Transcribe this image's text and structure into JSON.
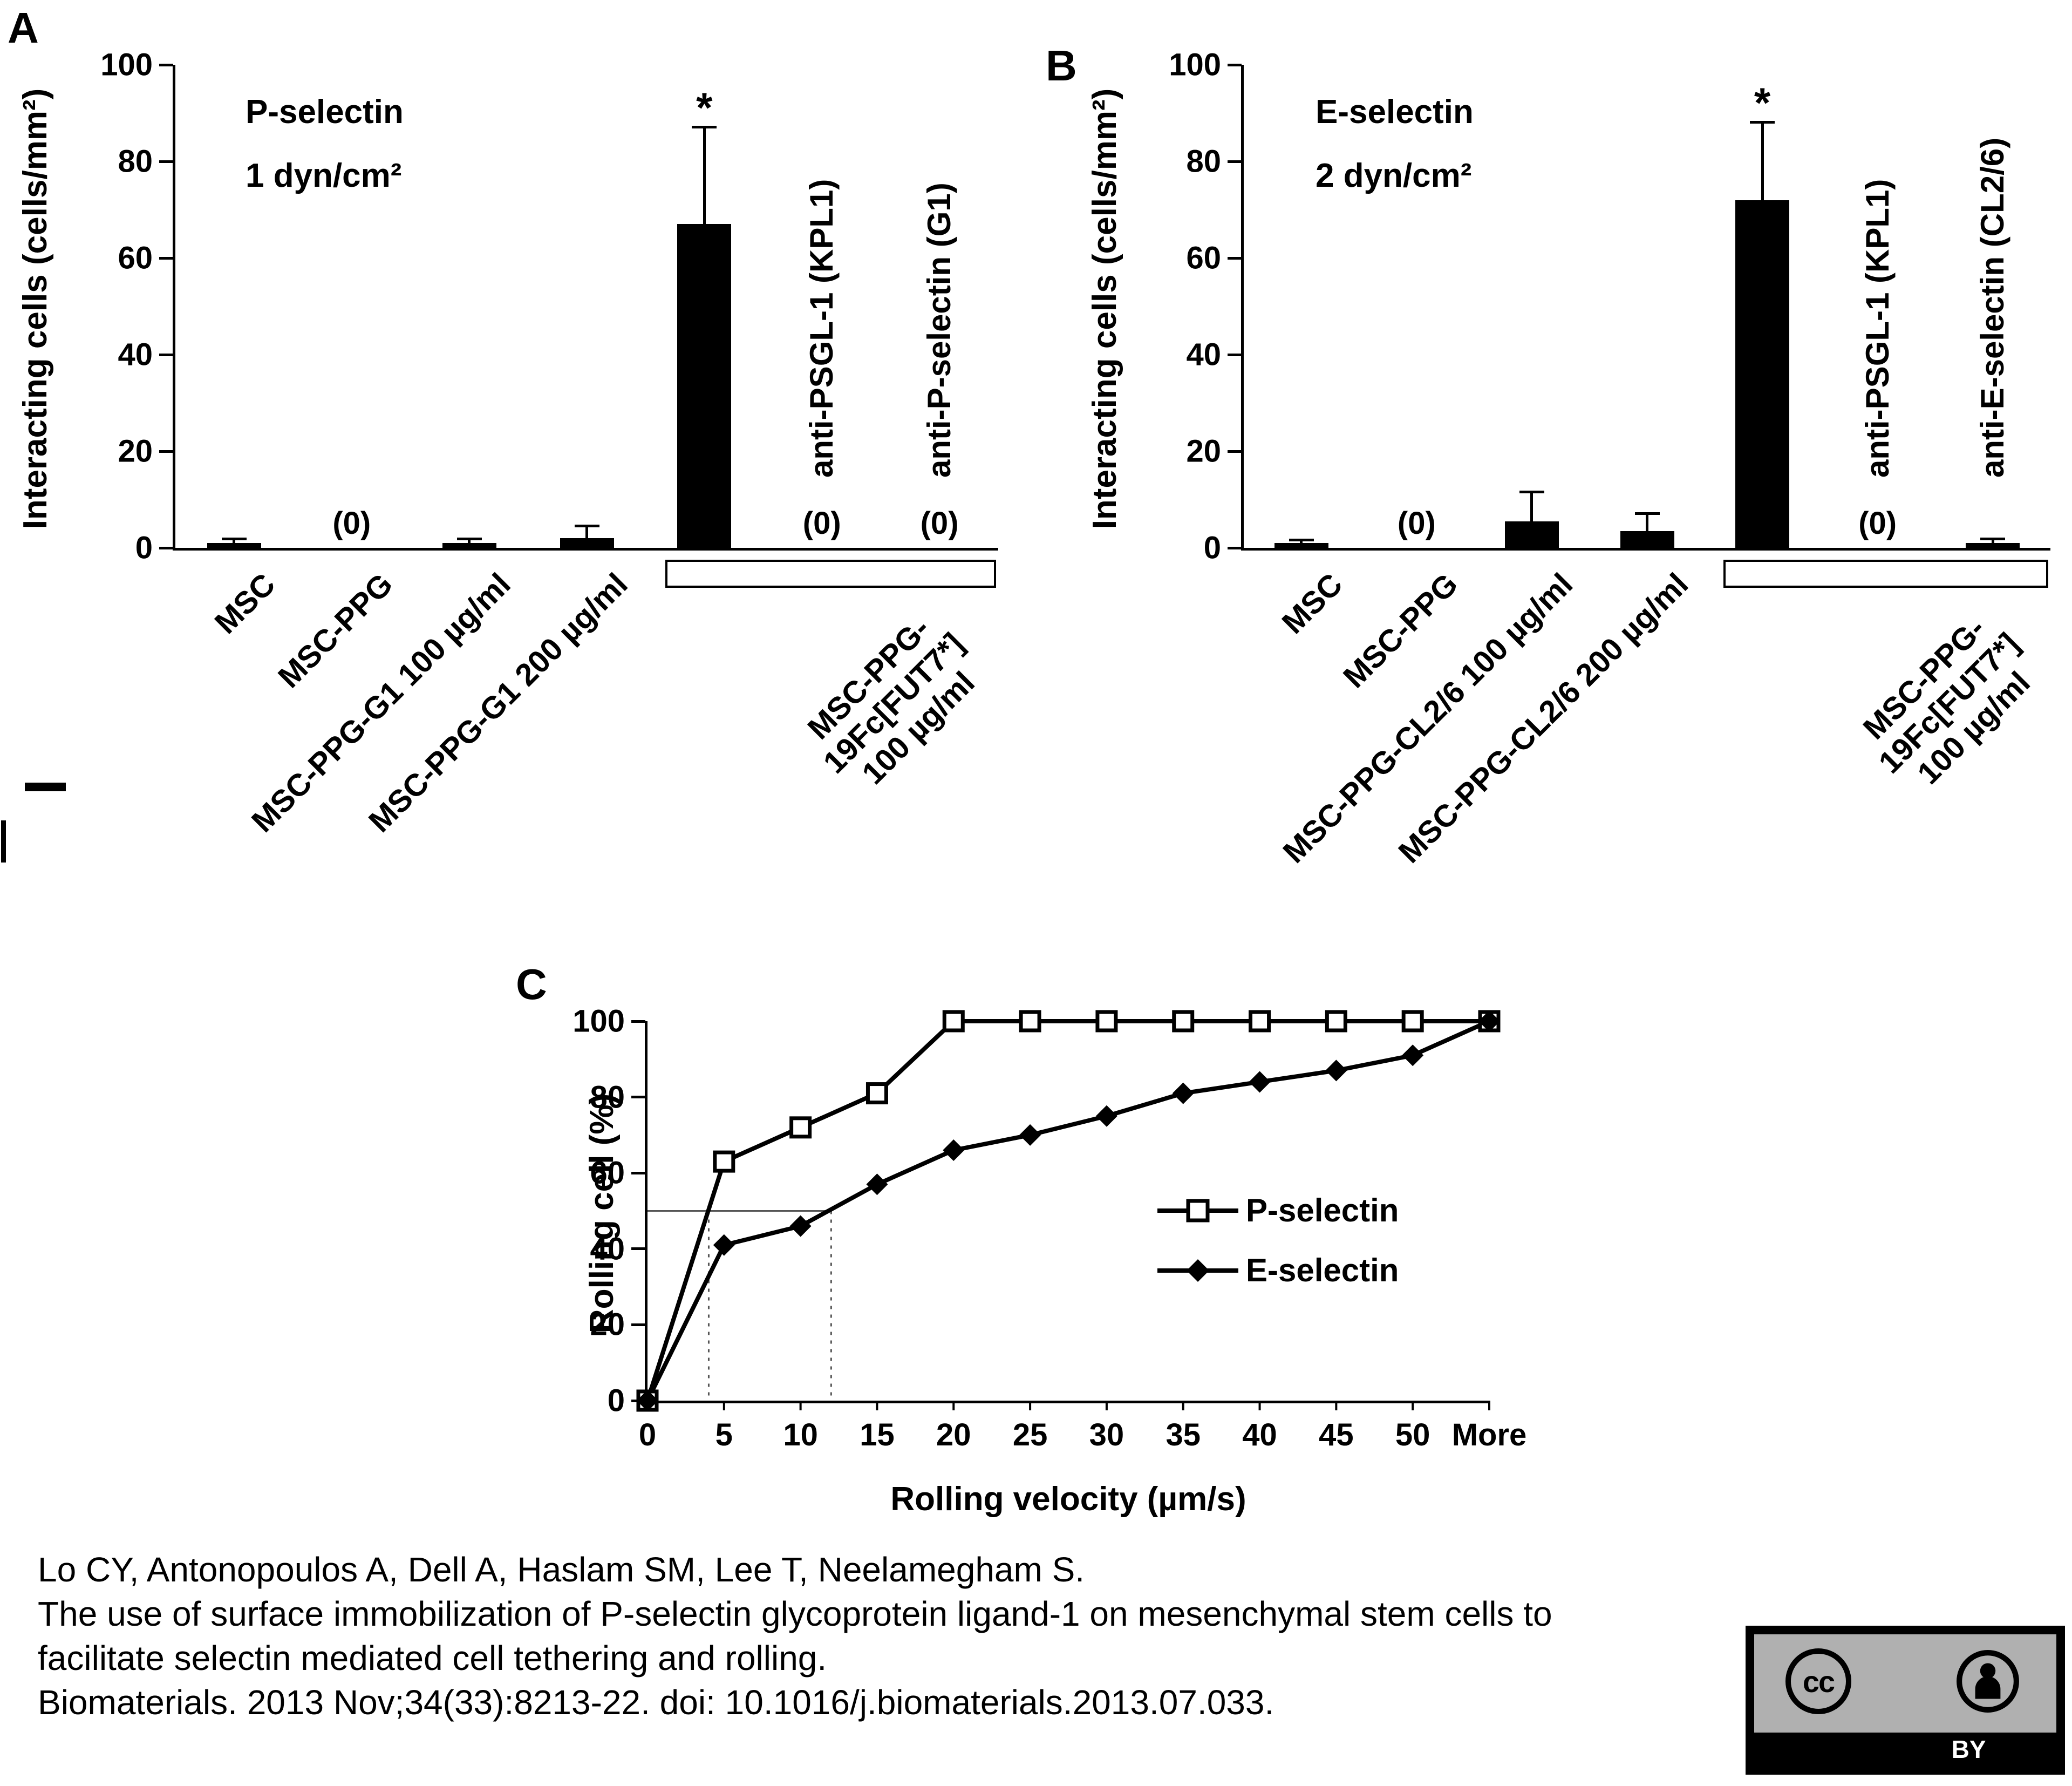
{
  "figure": {
    "background": "#ffffff",
    "text_color": "#000000"
  },
  "chart_data": [
    {
      "id": "panel-a",
      "panel_label": "A",
      "type": "bar",
      "title": "P-selectin",
      "subtitle": "1 dyn/cm²",
      "ylabel": "Interacting cells (cells/mm²)",
      "ylim": [
        0,
        100
      ],
      "yticks": [
        0,
        20,
        40,
        60,
        80,
        100
      ],
      "bar_color": "#000000",
      "x_tick_labels": [
        "MSC",
        "MSC-PPG",
        "MSC-PPG-G1 100 µg/ml",
        "MSC-PPG-G1 200 µg/ml"
      ],
      "values": [
        1,
        0,
        1,
        2,
        67,
        0,
        0
      ],
      "errors_plus": [
        0.8,
        0,
        0.8,
        2.5,
        20,
        0,
        0
      ],
      "zero_annotation_text": "(0)",
      "zero_annotation_slots": [
        1,
        5,
        6
      ],
      "significance": {
        "slot": 4,
        "symbol": "*"
      },
      "inplot_labels": [
        {
          "slot": 5,
          "text": "anti-PSGL-1 (KPL1)"
        },
        {
          "slot": 6,
          "text": "anti-P-selectin (G1)"
        }
      ],
      "bracket": {
        "from_slot": 4,
        "to_slot": 6,
        "label_lines": [
          "MSC-PPG-",
          "19Fc[FUT7*]",
          "100 µg/ml"
        ]
      }
    },
    {
      "id": "panel-b",
      "panel_label": "B",
      "type": "bar",
      "title": "E-selectin",
      "subtitle": "2 dyn/cm²",
      "ylabel": "Interacting cells (cells/mm²)",
      "ylim": [
        0,
        100
      ],
      "yticks": [
        0,
        20,
        40,
        60,
        80,
        100
      ],
      "bar_color": "#000000",
      "x_tick_labels": [
        "MSC",
        "MSC-PPG",
        "MSC-PPG-CL2/6 100 µg/ml",
        "MSC-PPG-CL2/6 200 µg/ml"
      ],
      "values": [
        1,
        0,
        5.5,
        3.5,
        72,
        0,
        1
      ],
      "errors_plus": [
        0.6,
        0,
        6,
        3.5,
        16,
        0,
        0.8
      ],
      "zero_annotation_text": "(0)",
      "zero_annotation_slots": [
        1,
        5
      ],
      "significance": {
        "slot": 4,
        "symbol": "*"
      },
      "inplot_labels": [
        {
          "slot": 5,
          "text": "anti-PSGL-1 (KPL1)"
        },
        {
          "slot": 6,
          "text": "anti-E-selectin (CL2/6)"
        }
      ],
      "bracket": {
        "from_slot": 4,
        "to_slot": 6,
        "label_lines": [
          "MSC-PPG-",
          "19Fc[FUT7*]",
          "100 µg/ml"
        ]
      }
    },
    {
      "id": "panel-c",
      "panel_label": "C",
      "type": "line",
      "xlabel": "Rolling velocity (µm/s)",
      "ylabel": "Rolling cell (%)",
      "ylim": [
        0,
        100
      ],
      "yticks": [
        0,
        20,
        40,
        60,
        80,
        100
      ],
      "x_tick_labels": [
        "0",
        "5",
        "10",
        "15",
        "20",
        "25",
        "30",
        "35",
        "40",
        "45",
        "50",
        "More"
      ],
      "series": [
        {
          "name": "P-selectin",
          "marker": "open-square",
          "color": "#000000",
          "values": [
            0,
            63,
            72,
            81,
            100,
            100,
            100,
            100,
            100,
            100,
            100,
            100
          ]
        },
        {
          "name": "E-selectin",
          "marker": "filled-diamond",
          "color": "#000000",
          "values": [
            0,
            41,
            46,
            57,
            66,
            70,
            75,
            81,
            84,
            87,
            91,
            100
          ]
        }
      ],
      "median_guides": {
        "y": 50,
        "x_values": [
          4,
          12
        ]
      },
      "legend_position": "middle-right"
    }
  ],
  "citation": {
    "lines": [
      "Lo CY, Antonopoulos A, Dell A, Haslam SM, Lee T, Neelamegham S.",
      "The use of surface immobilization of P-selectin glycoprotein ligand-1 on mesenchymal stem cells to",
      "facilitate selectin mediated cell tethering and rolling.",
      "Biomaterials. 2013 Nov;34(33):8213-22. doi: 10.1016/j.biomaterials.2013.07.033."
    ]
  },
  "license_badge": {
    "name": "CC BY",
    "cc_label": "cc",
    "by_label": "BY"
  }
}
